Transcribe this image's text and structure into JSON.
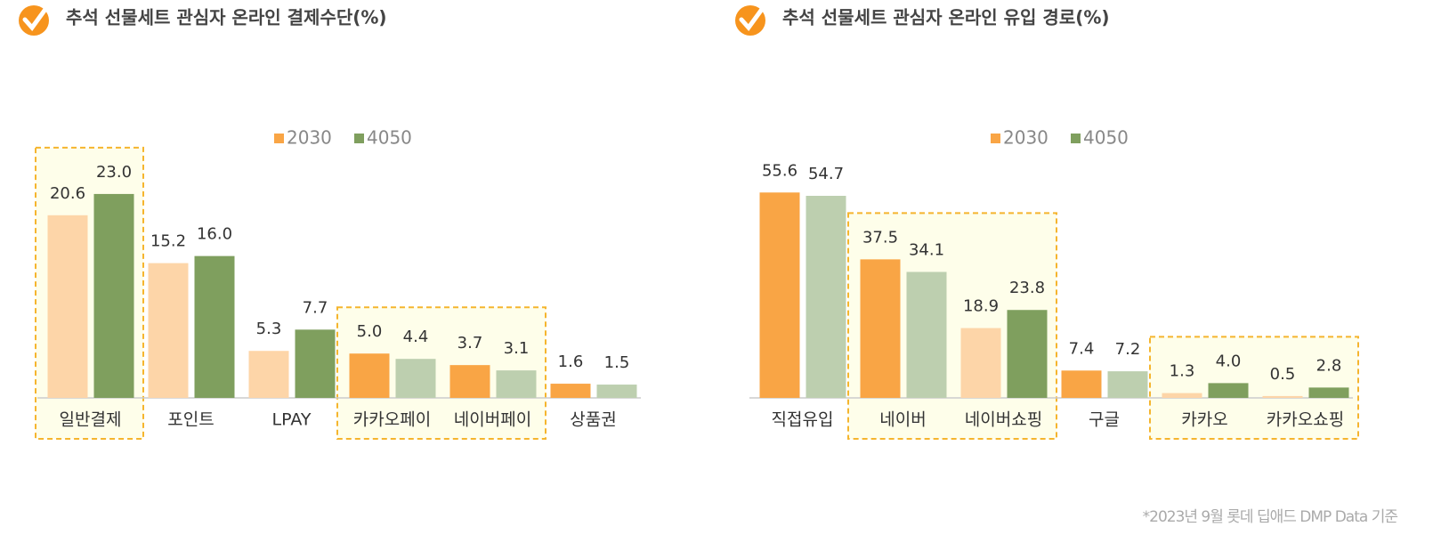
{
  "chart_data": [
    {
      "type": "bar",
      "title": "추석 선물세트 관심자 온라인 결제수단(%)",
      "categories": [
        "일반결제",
        "포인트",
        "LPAY",
        "카카오페이",
        "네이버페이",
        "상품권"
      ],
      "series": [
        {
          "name": "2030",
          "color": "#F9A545",
          "colors": [
            "#FDD5A8",
            "#FDD5A8",
            "#FDD5A8",
            "#F9A545",
            "#F9A545",
            "#F9A545"
          ],
          "values": [
            20.6,
            15.2,
            5.3,
            5.0,
            3.7,
            1.6
          ],
          "value_labels": [
            "20.6",
            "15.2",
            "5.3",
            "5.0",
            "3.7",
            "1.6"
          ]
        },
        {
          "name": "4050",
          "color": "#7F9F5E",
          "colors": [
            "#7F9F5E",
            "#7F9F5E",
            "#7F9F5E",
            "#BDCFAF",
            "#BDCFAF",
            "#BDCFAF"
          ],
          "values": [
            23.0,
            16.0,
            7.7,
            4.4,
            3.1,
            1.5
          ],
          "value_labels": [
            "23.0",
            "16.0",
            "7.7",
            "4.4",
            "3.1",
            "1.5"
          ]
        }
      ],
      "ylim": [
        0,
        25
      ],
      "highlight": [
        [
          0,
          0
        ],
        [
          3,
          4
        ]
      ]
    },
    {
      "type": "bar",
      "title": "추석 선물세트 관심자 온라인 유입 경로(%)",
      "categories": [
        "직접유입",
        "네이버",
        "네이버쇼핑",
        "구글",
        "카카오",
        "카카오쇼핑"
      ],
      "series": [
        {
          "name": "2030",
          "color": "#F9A545",
          "colors": [
            "#F9A545",
            "#F9A545",
            "#FDD5A8",
            "#F9A545",
            "#FDD5A8",
            "#FDD5A8"
          ],
          "values": [
            55.6,
            37.5,
            18.9,
            7.4,
            1.3,
            0.5
          ],
          "value_labels": [
            "55.6",
            "37.5",
            "18.9",
            "7.4",
            "1.3",
            "0.5"
          ]
        },
        {
          "name": "4050",
          "color": "#7F9F5E",
          "colors": [
            "#BDCFAF",
            "#BDCFAF",
            "#7F9F5E",
            "#BDCFAF",
            "#7F9F5E",
            "#7F9F5E"
          ],
          "values": [
            54.7,
            34.1,
            23.8,
            7.2,
            4.0,
            2.8
          ],
          "value_labels": [
            "54.7",
            "34.1",
            "23.8",
            "7.2",
            "4.0",
            "2.8"
          ]
        }
      ],
      "ylim": [
        0,
        60
      ],
      "highlight": [
        [
          1,
          2
        ],
        [
          4,
          5
        ]
      ]
    }
  ],
  "footnote": "*2023년 9월 롯데 딥애드 DMP Data 기준"
}
